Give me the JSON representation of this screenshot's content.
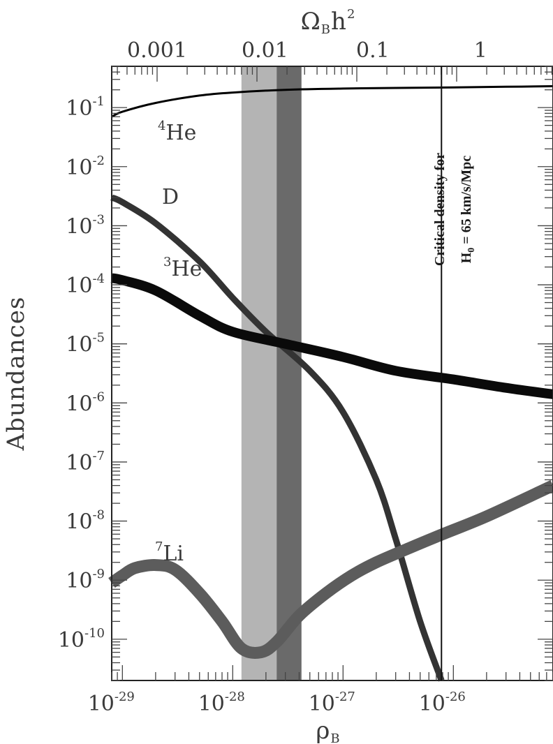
{
  "chart_data": {
    "type": "line",
    "title": "",
    "xlabel": "ρB",
    "x2label": "ΩBh2",
    "ylabel": "Abundances",
    "xscale": "log",
    "yscale": "log",
    "xlim": [
      8e-30,
      8e-26
    ],
    "ylim": [
      2e-11,
      0.5
    ],
    "x_ticks": [
      "10-29",
      "10-28",
      "10-27",
      "10-26"
    ],
    "x2_ticks": [
      "0.001",
      "0.01",
      "0.1",
      "1"
    ],
    "y_ticks": [
      "10-1",
      "10-2",
      "10-3",
      "10-4",
      "10-5",
      "10-6",
      "10-7",
      "10-8",
      "10-9",
      "10-10"
    ],
    "bands": [
      {
        "x": [
          1.2e-28,
          2.5e-28
        ],
        "shade": "#b4b4b4"
      },
      {
        "x": [
          2.5e-28,
          4.2e-28
        ],
        "shade": "#6a6a6a"
      }
    ],
    "vline": {
      "x": 7.8e-27,
      "label_line1": "Critical density for",
      "label_line2": "H0 = 65  km/s/Mpc"
    },
    "series": [
      {
        "name": "4He",
        "label": "He",
        "sup": "4",
        "color": "#000000",
        "x": [
          8e-30,
          1e-29,
          2e-29,
          5e-29,
          1e-28,
          3e-28,
          1e-27,
          3e-27,
          1e-26,
          3e-26,
          8e-26
        ],
        "y": [
          0.07,
          0.085,
          0.12,
          0.16,
          0.18,
          0.2,
          0.21,
          0.215,
          0.22,
          0.225,
          0.23
        ]
      },
      {
        "name": "D",
        "label": "D",
        "sup": "",
        "color": "#333333",
        "x": [
          8e-30,
          1e-29,
          2e-29,
          5e-29,
          1e-28,
          2e-28,
          5e-28,
          1e-27,
          2e-27,
          3e-27,
          5e-27,
          7.8e-27
        ],
        "y": [
          0.003,
          0.0025,
          0.0011,
          0.00025,
          6e-05,
          1.6e-05,
          3.5e-06,
          7e-07,
          5e-08,
          5e-09,
          2e-10,
          2e-11
        ]
      },
      {
        "name": "3He",
        "label": "He",
        "sup": "3",
        "color": "#0a0a0a",
        "x": [
          8e-30,
          1e-29,
          2e-29,
          5e-29,
          1e-28,
          3e-28,
          1e-27,
          3e-27,
          1e-26,
          3e-26,
          8e-26
        ],
        "y": [
          0.00013,
          0.00012,
          8e-05,
          3e-05,
          1.6e-05,
          1e-05,
          6e-06,
          3.5e-06,
          2.5e-06,
          1.8e-06,
          1.4e-06
        ]
      },
      {
        "name": "7Li",
        "label": "Li",
        "sup": "7",
        "color": "#5c5c5c",
        "x": [
          8e-30,
          1e-29,
          1.3e-29,
          2e-29,
          3e-29,
          5e-29,
          8e-29,
          1.2e-28,
          1.8e-28,
          2.5e-28,
          4e-28,
          7e-28,
          1.2e-27,
          2e-27,
          4e-27,
          8e-27,
          2e-26,
          8e-26
        ],
        "y": [
          9e-10,
          1.2e-09,
          1.6e-09,
          1.8e-09,
          1.5e-09,
          6e-10,
          2e-10,
          7e-11,
          6e-11,
          9e-11,
          2.5e-10,
          6e-10,
          1.2e-09,
          2e-09,
          3.5e-09,
          6e-09,
          1.2e-08,
          4e-08
        ]
      }
    ]
  }
}
